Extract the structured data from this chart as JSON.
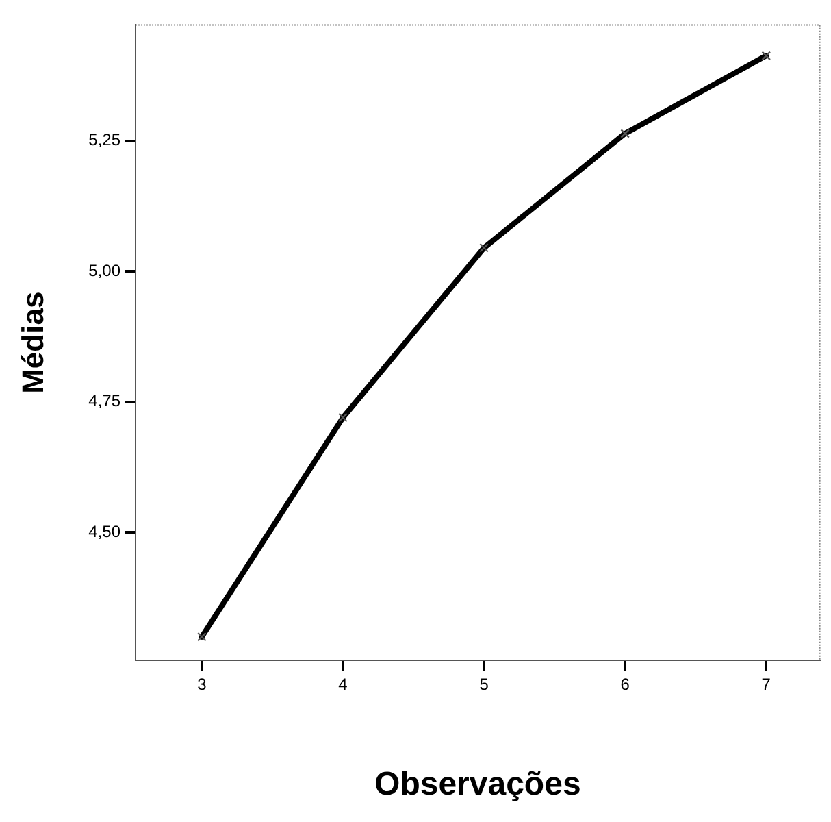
{
  "chart_data": {
    "type": "line",
    "xlabel": "Observações",
    "ylabel": "Médias",
    "x": [
      3,
      4,
      5,
      6,
      7
    ],
    "series": [
      {
        "color": "#000000",
        "values": [
          4.3,
          4.72,
          5.045,
          5.264,
          5.413
        ]
      }
    ],
    "xlim": [
      2.53,
      7.38
    ],
    "xticks": [
      3,
      4,
      5,
      6,
      7
    ],
    "ylim": [
      4.255,
      5.472
    ],
    "yticks": [
      {
        "value": 4.5,
        "label": "4,50"
      },
      {
        "value": 4.75,
        "label": "4,75"
      },
      {
        "value": 5,
        "label": "5,00"
      },
      {
        "value": 5.25,
        "label": "5,25"
      }
    ],
    "grid": false,
    "legend": false,
    "marker": "cross",
    "line_style": "solid"
  }
}
